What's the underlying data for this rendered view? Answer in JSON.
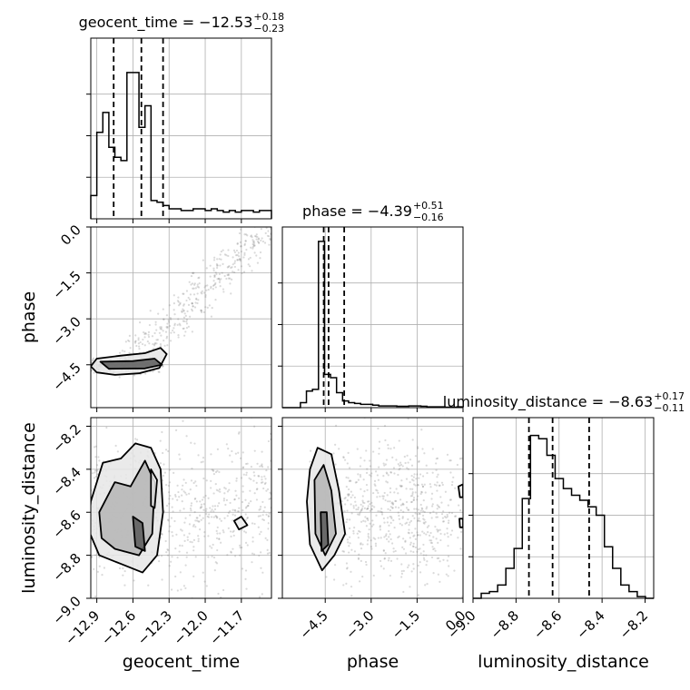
{
  "chart_data": {
    "type": "corner",
    "parameters": [
      "geocent_time",
      "phase",
      "luminosity_distance"
    ],
    "titles": [
      {
        "param": "geocent_time",
        "prefix": "geocent_time = ",
        "median": "−12.53",
        "upper": "+0.18",
        "lower": "−0.23"
      },
      {
        "param": "phase",
        "prefix": "phase = ",
        "median": "−4.39",
        "upper": "+0.51",
        "lower": "−0.16"
      },
      {
        "param": "luminosity_distance",
        "prefix": "luminosity_distance = ",
        "median": "−8.63",
        "upper": "+0.17",
        "lower": "−0.11"
      }
    ],
    "ranges": {
      "geocent_time": [
        -12.95,
        -11.45
      ],
      "phase": [
        -5.9,
        0.0
      ],
      "luminosity_distance": [
        -9.0,
        -8.16
      ]
    },
    "ticks": {
      "geocent_time": [
        -12.9,
        -12.6,
        -12.3,
        -12.0,
        -11.7
      ],
      "phase": [
        -4.5,
        -3.0,
        -1.5,
        0.0
      ],
      "luminosity_distance": [
        -9.0,
        -8.8,
        -8.6,
        -8.4,
        -8.2
      ]
    },
    "tick_labels": {
      "geocent_time": [
        "−12.9",
        "−12.6",
        "−12.3",
        "−12.0",
        "−11.7"
      ],
      "phase": [
        "−4.5",
        "−3.0",
        "−1.5",
        "0.0"
      ],
      "luminosity_distance": [
        "−9.0",
        "−8.8",
        "−8.6",
        "−8.4",
        "−8.2"
      ]
    },
    "quantiles": {
      "geocent_time": [
        -12.76,
        -12.53,
        -12.35
      ],
      "phase": [
        -4.55,
        -4.39,
        -3.88
      ],
      "luminosity_distance": [
        -8.74,
        -8.63,
        -8.46
      ]
    },
    "histograms": {
      "geocent_time": {
        "range": [
          -12.95,
          -11.45
        ],
        "counts": [
          0.14,
          0.52,
          0.64,
          0.43,
          0.37,
          0.35,
          0.88,
          0.88,
          0.55,
          0.68,
          0.11,
          0.1,
          0.08,
          0.06,
          0.06,
          0.05,
          0.05,
          0.06,
          0.06,
          0.05,
          0.06,
          0.05,
          0.04,
          0.05,
          0.04,
          0.05,
          0.05,
          0.04,
          0.05,
          0.05
        ]
      },
      "phase": {
        "range": [
          -5.9,
          0.0
        ],
        "counts": [
          0.0,
          0.0,
          0.0,
          0.03,
          0.1,
          0.11,
          1.0,
          0.2,
          0.18,
          0.09,
          0.04,
          0.03,
          0.025,
          0.02,
          0.02,
          0.015,
          0.01,
          0.01,
          0.01,
          0.008,
          0.008,
          0.01,
          0.01,
          0.008,
          0.005,
          0.005,
          0.005,
          0.003,
          0.003,
          0.005
        ]
      },
      "luminosity_distance": {
        "range": [
          -9.0,
          -8.16
        ],
        "counts": [
          0.0,
          0.03,
          0.04,
          0.08,
          0.18,
          0.3,
          0.6,
          0.98,
          0.96,
          0.86,
          0.72,
          0.66,
          0.62,
          0.59,
          0.55,
          0.5,
          0.31,
          0.18,
          0.08,
          0.04,
          0.01,
          0.0
        ]
      }
    },
    "contours_2d": {
      "phase_vs_geocent_time": [
        {
          "level": "outer",
          "points": [
            [
              -12.9,
              -4.3
            ],
            [
              -12.7,
              -4.2
            ],
            [
              -12.5,
              -4.12
            ],
            [
              -12.37,
              -3.95
            ],
            [
              -12.32,
              -4.15
            ],
            [
              -12.38,
              -4.6
            ],
            [
              -12.55,
              -4.78
            ],
            [
              -12.75,
              -4.83
            ],
            [
              -12.9,
              -4.75
            ],
            [
              -12.95,
              -4.55
            ]
          ]
        },
        {
          "level": "inner",
          "points": [
            [
              -12.87,
              -4.4
            ],
            [
              -12.6,
              -4.38
            ],
            [
              -12.42,
              -4.3
            ],
            [
              -12.36,
              -4.5
            ],
            [
              -12.5,
              -4.62
            ],
            [
              -12.8,
              -4.63
            ]
          ]
        }
      ],
      "luminosity_distance_vs_geocent_time": [
        {
          "level": "outer",
          "points": [
            [
              -12.95,
              -8.55
            ],
            [
              -12.85,
              -8.37
            ],
            [
              -12.7,
              -8.35
            ],
            [
              -12.58,
              -8.28
            ],
            [
              -12.45,
              -8.3
            ],
            [
              -12.37,
              -8.4
            ],
            [
              -12.35,
              -8.6
            ],
            [
              -12.4,
              -8.8
            ],
            [
              -12.52,
              -8.88
            ],
            [
              -12.7,
              -8.84
            ],
            [
              -12.88,
              -8.8
            ],
            [
              -12.97,
              -8.68
            ]
          ]
        },
        {
          "level": "mid",
          "points": [
            [
              -12.88,
              -8.6
            ],
            [
              -12.75,
              -8.46
            ],
            [
              -12.62,
              -8.48
            ],
            [
              -12.5,
              -8.36
            ],
            [
              -12.42,
              -8.46
            ],
            [
              -12.44,
              -8.7
            ],
            [
              -12.55,
              -8.8
            ],
            [
              -12.75,
              -8.77
            ],
            [
              -12.86,
              -8.72
            ]
          ]
        },
        {
          "level": "inner",
          "points": [
            [
              -12.6,
              -8.62
            ],
            [
              -12.52,
              -8.65
            ],
            [
              -12.5,
              -8.78
            ],
            [
              -12.58,
              -8.76
            ]
          ]
        },
        {
          "level": "island",
          "points": [
            [
              -12.45,
              -8.4
            ],
            [
              -12.4,
              -8.45
            ],
            [
              -12.42,
              -8.58
            ],
            [
              -12.45,
              -8.57
            ]
          ]
        },
        {
          "level": "island",
          "points": [
            [
              -11.76,
              -8.64
            ],
            [
              -11.7,
              -8.62
            ],
            [
              -11.65,
              -8.66
            ],
            [
              -11.72,
              -8.68
            ]
          ]
        }
      ],
      "luminosity_distance_vs_phase": [
        {
          "level": "outer",
          "points": [
            [
              -5.0,
              -8.4
            ],
            [
              -4.75,
              -8.3
            ],
            [
              -4.3,
              -8.33
            ],
            [
              -4.05,
              -8.5
            ],
            [
              -3.85,
              -8.7
            ],
            [
              -4.2,
              -8.8
            ],
            [
              -4.6,
              -8.87
            ],
            [
              -5.0,
              -8.75
            ],
            [
              -5.1,
              -8.55
            ]
          ]
        },
        {
          "level": "mid",
          "points": [
            [
              -4.85,
              -8.45
            ],
            [
              -4.55,
              -8.38
            ],
            [
              -4.3,
              -8.5
            ],
            [
              -4.15,
              -8.7
            ],
            [
              -4.5,
              -8.8
            ],
            [
              -4.82,
              -8.7
            ]
          ]
        },
        {
          "level": "inner",
          "points": [
            [
              -4.65,
              -8.6
            ],
            [
              -4.45,
              -8.6
            ],
            [
              -4.4,
              -8.75
            ],
            [
              -4.62,
              -8.78
            ]
          ]
        },
        {
          "level": "island",
          "points": [
            [
              0.0,
              -8.47
            ],
            [
              -0.15,
              -8.48
            ],
            [
              -0.1,
              -8.53
            ],
            [
              0.0,
              -8.53
            ]
          ]
        },
        {
          "level": "island",
          "points": [
            [
              0.0,
              -8.63
            ],
            [
              -0.12,
              -8.63
            ],
            [
              -0.1,
              -8.67
            ],
            [
              0.0,
              -8.67
            ]
          ]
        }
      ]
    },
    "grid": true
  }
}
